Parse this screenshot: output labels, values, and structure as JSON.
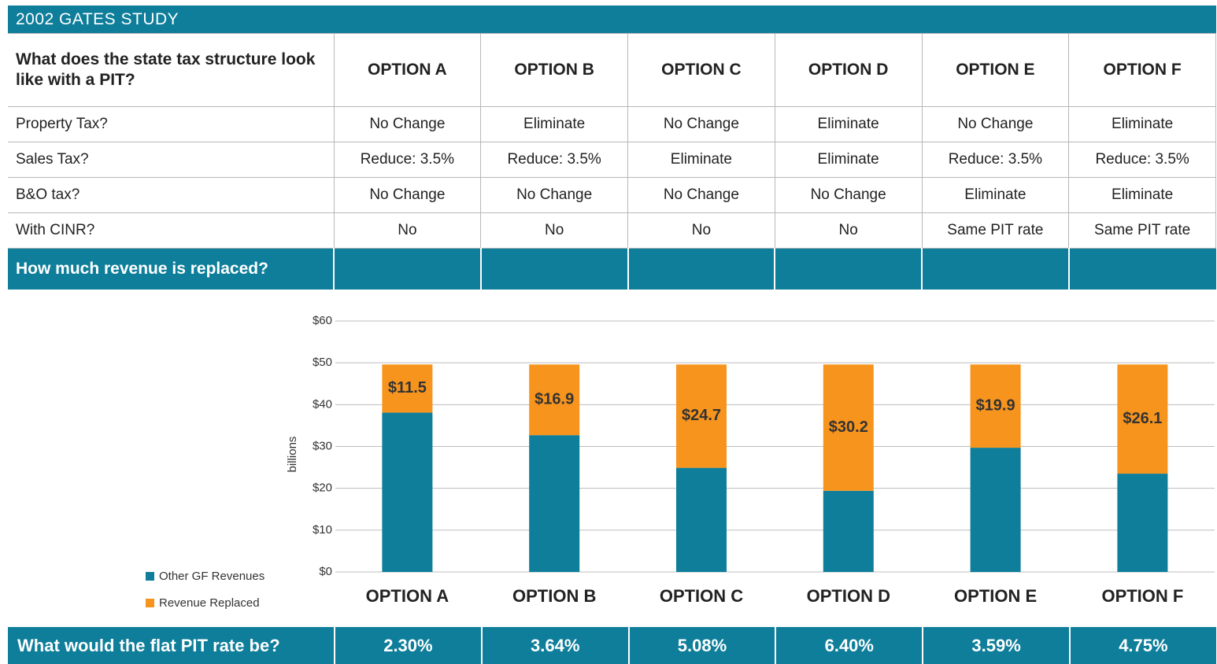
{
  "header": {
    "title": "2002 GATES STUDY"
  },
  "table": {
    "columns": [
      "What does the state tax structure look like with a PIT?",
      "OPTION A",
      "OPTION B",
      "OPTION C",
      "OPTION D",
      "OPTION E",
      "OPTION F"
    ],
    "rows": [
      [
        "Property Tax?",
        "No Change",
        "Eliminate",
        "No Change",
        "Eliminate",
        "No Change",
        "Eliminate"
      ],
      [
        "Sales Tax?",
        "Reduce: 3.5%",
        "Reduce: 3.5%",
        "Eliminate",
        "Eliminate",
        "Reduce: 3.5%",
        "Reduce: 3.5%"
      ],
      [
        "B&O tax?",
        "No Change",
        "No Change",
        "No Change",
        "No Change",
        "Eliminate",
        "Eliminate"
      ],
      [
        "With CINR?",
        "No",
        "No",
        "No",
        "No",
        "Same PIT rate",
        "Same PIT rate"
      ]
    ],
    "section": "How much revenue is replaced?"
  },
  "chart_data": {
    "type": "stacked_bar",
    "y_label": "billions",
    "categories": [
      "OPTION A",
      "OPTION B",
      "OPTION C",
      "OPTION D",
      "OPTION E",
      "OPTION F"
    ],
    "series": [
      {
        "name": "Other GF Revenues",
        "color": "#0e7e9a",
        "values": [
          38.1,
          32.7,
          24.9,
          19.4,
          29.7,
          23.5
        ]
      },
      {
        "name": "Revenue Replaced",
        "color": "#f7941d",
        "values": [
          11.5,
          16.9,
          24.7,
          30.2,
          19.9,
          26.1
        ],
        "value_labels": [
          "$11.5",
          "$16.9",
          "$24.7",
          "$30.2",
          "$19.9",
          "$26.1"
        ]
      }
    ],
    "ylim": [
      0,
      60
    ],
    "yticks": [
      {
        "value": 0,
        "label": "$0"
      },
      {
        "value": 10,
        "label": "$10"
      },
      {
        "value": 20,
        "label": "$20"
      },
      {
        "value": 30,
        "label": "$30"
      },
      {
        "value": 40,
        "label": "$40"
      },
      {
        "value": 50,
        "label": "$50"
      },
      {
        "value": 60,
        "label": "$60"
      }
    ],
    "grid": true,
    "legend": "bottom-left"
  },
  "footer": {
    "label": "What would the flat PIT rate be?",
    "values": [
      "2.30%",
      "3.64%",
      "5.08%",
      "6.40%",
      "3.59%",
      "4.75%"
    ]
  }
}
